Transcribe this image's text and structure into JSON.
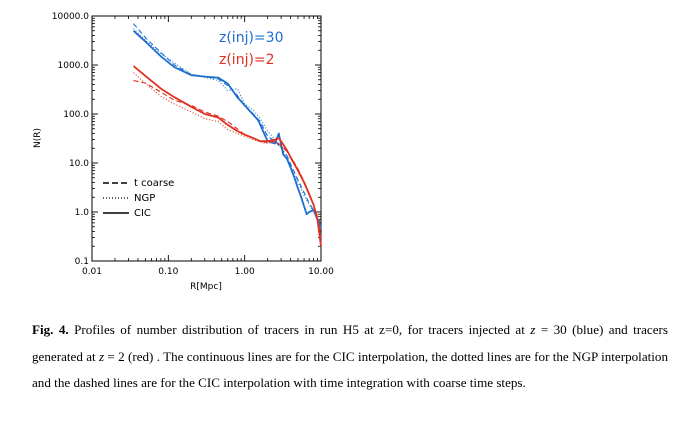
{
  "chart_data": {
    "type": "line",
    "title": "",
    "xlabel": "R[Mpc]",
    "ylabel": "N(R)",
    "xscale": "log",
    "yscale": "log",
    "xlim": [
      0.01,
      10.0
    ],
    "ylim": [
      0.1,
      10000.0
    ],
    "x_ticks": [
      "0.01",
      "0.10",
      "1.00",
      "10.00"
    ],
    "y_ticks": [
      "10000.0",
      "1000.0",
      "100.0",
      "10.0",
      "1.0",
      "0.1"
    ],
    "grid": false,
    "annotations": [
      {
        "text": "z(inj)=30",
        "color": "#1f6fd0"
      },
      {
        "text": "z(inj)=2",
        "color": "#e03020"
      }
    ],
    "legend": {
      "placement": "bottom-left",
      "entries": [
        {
          "label": "t coarse",
          "dash": "dashed"
        },
        {
          "label": "NGP",
          "dash": "dotted"
        },
        {
          "label": "CIC",
          "dash": "solid"
        }
      ]
    },
    "colors": {
      "blue": "#1f6fd0",
      "red": "#e03020"
    },
    "series": [
      {
        "group": "blue",
        "dash": "solid",
        "x": [
          0.035,
          0.05,
          0.08,
          0.12,
          0.2,
          0.3,
          0.45,
          0.6,
          0.8,
          1.0,
          1.2,
          1.5,
          2.0,
          2.5,
          2.8,
          3.2,
          3.6,
          4.0,
          4.5,
          5.0,
          5.5,
          6.0,
          6.5,
          7.0,
          8.0,
          9.0,
          10.0
        ],
        "y": [
          5000,
          3000,
          1500,
          900,
          620,
          580,
          550,
          420,
          220,
          150,
          110,
          75,
          28,
          25,
          40,
          15,
          12,
          8,
          5,
          3,
          2,
          1.3,
          0.9,
          1.0,
          1.1,
          0.7,
          0.5
        ]
      },
      {
        "group": "blue",
        "dash": "dotted",
        "x": [
          0.035,
          0.05,
          0.08,
          0.12,
          0.2,
          0.3,
          0.45,
          0.6,
          0.8,
          1.0,
          1.3,
          1.6,
          2.0,
          2.5,
          3.0,
          3.6,
          4.2,
          5.0,
          6.0,
          7.0,
          8.0,
          9.0,
          10.0
        ],
        "y": [
          5500,
          3200,
          1700,
          1100,
          650,
          560,
          480,
          300,
          330,
          160,
          120,
          80,
          45,
          30,
          20,
          13,
          7,
          4,
          2.2,
          1.4,
          1.0,
          0.7,
          0.5
        ]
      },
      {
        "group": "blue",
        "dash": "dashed",
        "x": [
          0.035,
          0.05,
          0.08,
          0.12,
          0.2,
          0.3,
          0.45,
          0.6,
          0.8,
          1.0,
          1.3,
          1.6,
          2.0,
          2.5,
          3.0,
          3.6,
          4.2,
          5.0,
          6.0,
          7.0,
          8.0,
          9.0,
          10.0
        ],
        "y": [
          7000,
          3600,
          1800,
          1000,
          640,
          580,
          520,
          380,
          240,
          150,
          100,
          70,
          35,
          28,
          20,
          14,
          8,
          4.5,
          2.5,
          1.5,
          1.1,
          0.8,
          0.55
        ]
      },
      {
        "group": "red",
        "dash": "solid",
        "x": [
          0.035,
          0.05,
          0.08,
          0.12,
          0.2,
          0.3,
          0.45,
          0.6,
          0.8,
          1.0,
          1.3,
          1.6,
          2.0,
          2.5,
          2.8,
          3.2,
          3.6,
          4.0,
          5.0,
          6.0,
          7.0,
          8.0,
          9.0,
          10.0
        ],
        "y": [
          950,
          600,
          330,
          220,
          140,
          100,
          85,
          60,
          45,
          38,
          32,
          28,
          28,
          30,
          32,
          24,
          18,
          13,
          7,
          4,
          2.3,
          1.4,
          0.7,
          0.2
        ]
      },
      {
        "group": "red",
        "dash": "dotted",
        "x": [
          0.035,
          0.05,
          0.08,
          0.12,
          0.2,
          0.3,
          0.45,
          0.6,
          0.8,
          1.0,
          1.3,
          1.6,
          2.0,
          2.5,
          3.0,
          3.6,
          4.2,
          5.0,
          6.0,
          7.0,
          8.0,
          9.0,
          10.0
        ],
        "y": [
          700,
          420,
          230,
          160,
          110,
          80,
          70,
          48,
          40,
          35,
          30,
          27,
          25,
          27,
          22,
          17,
          12,
          7.5,
          4.2,
          2.4,
          1.4,
          0.7,
          0.3
        ]
      },
      {
        "group": "red",
        "dash": "dashed",
        "x": [
          0.035,
          0.05,
          0.08,
          0.12,
          0.2,
          0.3,
          0.45,
          0.6,
          0.8,
          1.0,
          1.3,
          1.6,
          2.0,
          2.5,
          3.0,
          3.6,
          4.2,
          5.0,
          6.0,
          7.0,
          8.0,
          9.0,
          10.0
        ],
        "y": [
          480,
          430,
          280,
          190,
          150,
          110,
          90,
          70,
          50,
          38,
          32,
          28,
          26,
          28,
          23,
          17,
          12,
          7.5,
          4.2,
          2.4,
          1.4,
          0.8,
          0.3
        ]
      }
    ]
  },
  "caption": {
    "label": "Fig. 4.",
    "t1": " Profiles of number distribution of tracers in run H5 at z=0, for tracers injected at ",
    "z1": "z",
    "t2": " = 30 (blue) and tracers generated at ",
    "z2": "z",
    "t3": " = 2 (red) . The continuous lines are for the CIC interpolation, the dotted lines are for the NGP interpolation and the dashed lines are for the CIC interpolation with time integration with coarse time steps."
  }
}
